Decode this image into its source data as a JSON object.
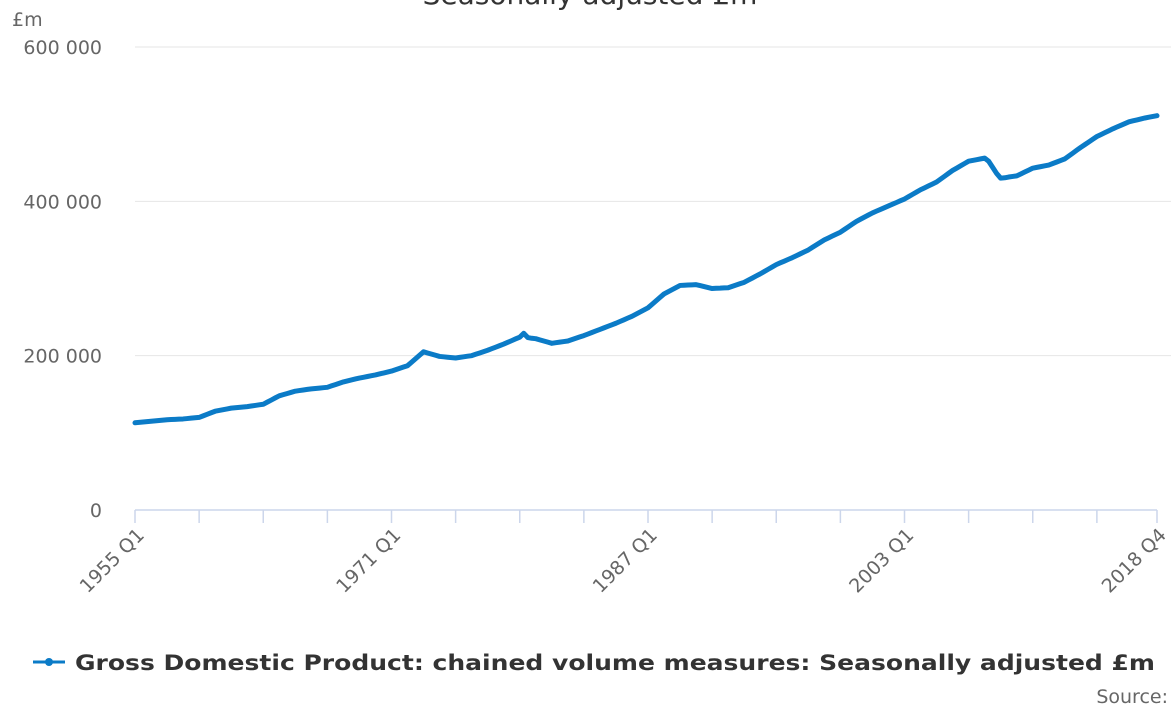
{
  "chart_data": {
    "type": "line",
    "title": "Seasonally adjusted £m",
    "y_unit": "£m",
    "source": "Source:",
    "categories": [
      "1955 Q1",
      null,
      null,
      null,
      null,
      null,
      null,
      null,
      null,
      null,
      null,
      null,
      null,
      null,
      null,
      null,
      null,
      null,
      null,
      null,
      null,
      null,
      null,
      null,
      null,
      null,
      null,
      null,
      null,
      null,
      null,
      null,
      null,
      null,
      null,
      null,
      null,
      null,
      null,
      null,
      null,
      null,
      null,
      null,
      null,
      null,
      null,
      null,
      null,
      null,
      null,
      null,
      null,
      null,
      null,
      null,
      null,
      null,
      null,
      null,
      null,
      null,
      null,
      null,
      "1971 Q1",
      null,
      null,
      null,
      null,
      null,
      null,
      null,
      null,
      null,
      null,
      null,
      null,
      null,
      null,
      null,
      null,
      null,
      null,
      null,
      null,
      null,
      null,
      null,
      null,
      null,
      null,
      null,
      null,
      null,
      null,
      null,
      null,
      null,
      null,
      null,
      null,
      null,
      null,
      null,
      null,
      null,
      null,
      null,
      null,
      null,
      null,
      null,
      null,
      null,
      null,
      null,
      null,
      null,
      null,
      null,
      null,
      null,
      null,
      null,
      null,
      null,
      null,
      null,
      "1987 Q1",
      null,
      null,
      null,
      null,
      null,
      null,
      null,
      null,
      null,
      null,
      null,
      null,
      null,
      null,
      null,
      null,
      null,
      null,
      null,
      null,
      null,
      null,
      null,
      null,
      null,
      null,
      null,
      null,
      null,
      null,
      null,
      null,
      null,
      null,
      null,
      null,
      null,
      null,
      null,
      null,
      null,
      null,
      null,
      null,
      null,
      null,
      null,
      null,
      null,
      null,
      null,
      null,
      null,
      null,
      null,
      null,
      null,
      null,
      null,
      null,
      null,
      null,
      null,
      "2003 Q1",
      null,
      null,
      null,
      null,
      null,
      null,
      null,
      null,
      null,
      null,
      null,
      null,
      null,
      null,
      null,
      null,
      null,
      null,
      null,
      null,
      null,
      null,
      null,
      null,
      null,
      null,
      null,
      null,
      null,
      null,
      null,
      null,
      null,
      null,
      null,
      null,
      null,
      null,
      null,
      null,
      null,
      null,
      null,
      null,
      null,
      null,
      null,
      null,
      null,
      null,
      null,
      null,
      null,
      null,
      null,
      null,
      null,
      null,
      null,
      null,
      null,
      null,
      "2018 Q4"
    ],
    "series": [
      {
        "name": "Gross Domestic Product: chained volume measures: Seasonally adjusted £m",
        "color": "#0b7bc7",
        "values": [
          113000,
          113500,
          114000,
          114500,
          115000,
          115500,
          116000,
          116500,
          117000,
          117300,
          117500,
          117800,
          118000,
          118500,
          119000,
          119500,
          120000,
          122000,
          124000,
          126000,
          128000,
          129000,
          130000,
          131000,
          132000,
          132500,
          133000,
          133500,
          134000,
          134800,
          135500,
          136300,
          137000,
          139800,
          142500,
          145300,
          148000,
          149500,
          151000,
          152500,
          154000,
          154800,
          155500,
          156300,
          157000,
          157500,
          158000,
          158500,
          159000,
          160800,
          162500,
          164300,
          166000,
          167300,
          168500,
          169800,
          171000,
          172000,
          173000,
          174000,
          175000,
          176300,
          177500,
          178800,
          180000,
          181800,
          183500,
          185300,
          187000,
          191500,
          196000,
          200500,
          205000,
          203500,
          202000,
          200500,
          199000,
          198500,
          198000,
          197500,
          197000,
          197800,
          198500,
          199300,
          200000,
          201800,
          203500,
          205300,
          207000,
          209000,
          211000,
          213000,
          215000,
          217300,
          219500,
          221800,
          224000,
          229000,
          223500,
          222500,
          222000,
          220500,
          219000,
          217500,
          216000,
          216800,
          217500,
          218300,
          219000,
          220800,
          222500,
          224300,
          226000,
          228000,
          230000,
          232000,
          234000,
          236000,
          238000,
          240000,
          242000,
          244300,
          246500,
          248800,
          251000,
          253800,
          256500,
          259300,
          262000,
          266500,
          271000,
          275500,
          280000,
          282800,
          285500,
          288300,
          291000,
          291300,
          291500,
          291800,
          292000,
          290800,
          289500,
          288300,
          287000,
          287300,
          287500,
          287800,
          288000,
          289800,
          291500,
          293300,
          295000,
          297800,
          300500,
          303300,
          306000,
          309000,
          312000,
          315000,
          318000,
          320300,
          322500,
          324800,
          327000,
          329500,
          332000,
          334500,
          337000,
          340300,
          343500,
          346800,
          350000,
          352500,
          355000,
          357500,
          360000,
          363500,
          367000,
          370500,
          374000,
          376800,
          379500,
          382300,
          385000,
          387300,
          389500,
          391800,
          394000,
          396300,
          398500,
          400800,
          403000,
          406000,
          409000,
          412000,
          415000,
          417500,
          420000,
          422500,
          425000,
          428800,
          432500,
          436300,
          440000,
          443000,
          446000,
          449000,
          452000,
          453000,
          454000,
          455000,
          456000,
          452000,
          444000,
          436000,
          430000,
          430500,
          431500,
          432300,
          433000,
          435500,
          438000,
          440500,
          443000,
          444000,
          445000,
          446000,
          447000,
          449000,
          451000,
          453000,
          455000,
          458800,
          462500,
          466300,
          470000,
          473500,
          477000,
          480500,
          484000,
          486500,
          489000,
          491500,
          494000,
          496300,
          498500,
          500800,
          503000,
          504300,
          505500,
          506800,
          508000,
          509000,
          510000,
          511000
        ]
      }
    ],
    "ylim": [
      0,
      600000
    ],
    "yticks": [
      0,
      {
        "value": 200000,
        "label": "200 000"
      },
      {
        "value": 400000,
        "label": "400 000"
      },
      {
        "value": 600000,
        "label": "600 000"
      }
    ],
    "grid": true,
    "legend": "bottom"
  }
}
